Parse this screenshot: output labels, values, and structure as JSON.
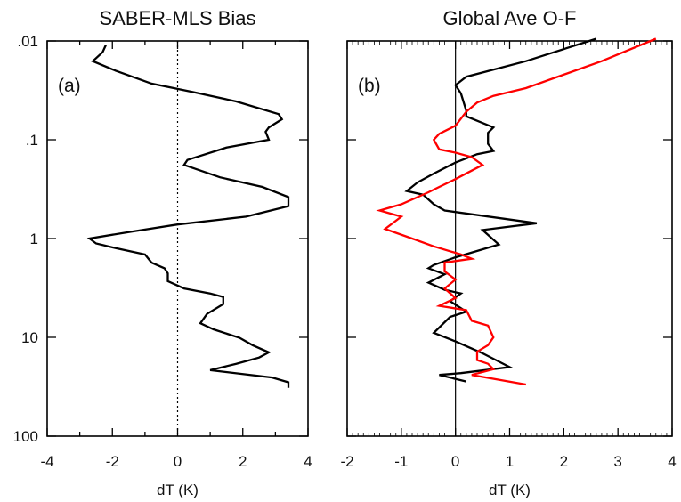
{
  "chart_data": [
    {
      "type": "line",
      "title": "SABER-MLS Bias",
      "panel_label": "(a)",
      "xlabel": "dT (K)",
      "ylabel": "",
      "xlim": [
        -4,
        4
      ],
      "ylim": [
        100,
        0.01
      ],
      "y_scale": "log-reversed",
      "x_ticks": [
        "-4",
        "-2",
        "0",
        "2",
        "4"
      ],
      "y_ticks": [
        ".01",
        ".1",
        "1",
        "10",
        "100"
      ],
      "zero_line": "dotted",
      "series": [
        {
          "color": "#000000",
          "points": [
            [
              -2.2,
              0.011
            ],
            [
              -2.3,
              0.013
            ],
            [
              -2.6,
              0.016
            ],
            [
              -1.9,
              0.02
            ],
            [
              -0.8,
              0.027
            ],
            [
              0.5,
              0.033
            ],
            [
              1.8,
              0.041
            ],
            [
              3.1,
              0.055
            ],
            [
              3.2,
              0.062
            ],
            [
              2.8,
              0.075
            ],
            [
              2.7,
              0.083
            ],
            [
              2.8,
              0.1
            ],
            [
              1.5,
              0.12
            ],
            [
              0.3,
              0.16
            ],
            [
              0.2,
              0.18
            ],
            [
              1.3,
              0.24
            ],
            [
              2.6,
              0.3
            ],
            [
              3.4,
              0.38
            ],
            [
              3.4,
              0.47
            ],
            [
              2.1,
              0.6
            ],
            [
              0.0,
              0.72
            ],
            [
              -1.5,
              0.86
            ],
            [
              -2.7,
              1.0
            ],
            [
              -2.5,
              1.12
            ],
            [
              -1.9,
              1.25
            ],
            [
              -1.0,
              1.45
            ],
            [
              -0.8,
              1.75
            ],
            [
              -0.4,
              2.0
            ],
            [
              -0.3,
              2.25
            ],
            [
              -0.3,
              2.7
            ],
            [
              0.2,
              3.2
            ],
            [
              1.0,
              3.6
            ],
            [
              1.4,
              3.9
            ],
            [
              1.4,
              4.6
            ],
            [
              0.9,
              5.8
            ],
            [
              0.7,
              7.2
            ],
            [
              1.1,
              8.3
            ],
            [
              1.9,
              10.1
            ],
            [
              2.3,
              12.0
            ],
            [
              2.8,
              14.2
            ],
            [
              2.5,
              16.0
            ],
            [
              1.8,
              18.5
            ],
            [
              1.0,
              21.5
            ],
            [
              2.9,
              25.5
            ],
            [
              3.4,
              28.5
            ],
            [
              3.4,
              32.5
            ]
          ]
        }
      ]
    },
    {
      "type": "line",
      "title": "Global Ave O-F",
      "panel_label": "(b)",
      "xlabel": "dT (K)",
      "ylabel": "",
      "xlim": [
        -2,
        4
      ],
      "ylim": [
        100,
        0.01
      ],
      "y_scale": "log-reversed",
      "x_ticks": [
        "-2",
        "-1",
        "0",
        "1",
        "2",
        "3",
        "4"
      ],
      "zero_line": "solid",
      "series": [
        {
          "color": "#000000",
          "points": [
            [
              2.6,
              0.0095
            ],
            [
              1.3,
              0.016
            ],
            [
              0.2,
              0.023
            ],
            [
              0.0,
              0.028
            ],
            [
              0.1,
              0.034
            ],
            [
              0.2,
              0.051
            ],
            [
              0.2,
              0.058
            ],
            [
              0.7,
              0.075
            ],
            [
              0.6,
              0.085
            ],
            [
              0.6,
              0.11
            ],
            [
              0.7,
              0.13
            ],
            [
              0.4,
              0.14
            ],
            [
              0.0,
              0.17
            ],
            [
              -0.4,
              0.22
            ],
            [
              -0.7,
              0.27
            ],
            [
              -0.9,
              0.33
            ],
            [
              -0.6,
              0.36
            ],
            [
              -0.4,
              0.45
            ],
            [
              -0.2,
              0.52
            ],
            [
              1.5,
              0.7
            ],
            [
              0.5,
              0.82
            ],
            [
              0.8,
              1.15
            ],
            [
              0.0,
              1.55
            ],
            [
              -0.4,
              1.85
            ],
            [
              -0.5,
              2.0
            ],
            [
              -0.2,
              2.3
            ],
            [
              -0.5,
              2.8
            ],
            [
              -0.2,
              3.3
            ],
            [
              0.1,
              3.6
            ],
            [
              -0.1,
              4.3
            ],
            [
              0.2,
              5.5
            ],
            [
              -0.1,
              6.2
            ],
            [
              -0.4,
              9.0
            ],
            [
              0.0,
              11.0
            ],
            [
              0.5,
              14.5
            ],
            [
              1.0,
              20.0
            ],
            [
              0.1,
              23.0
            ],
            [
              -0.3,
              24.0
            ],
            [
              0.2,
              28.0
            ]
          ]
        },
        {
          "color": "#ff0000",
          "points": [
            [
              3.7,
              0.0095
            ],
            [
              2.7,
              0.016
            ],
            [
              1.3,
              0.03
            ],
            [
              0.7,
              0.036
            ],
            [
              0.4,
              0.042
            ],
            [
              0.2,
              0.052
            ],
            [
              0.0,
              0.072
            ],
            [
              -0.3,
              0.087
            ],
            [
              -0.4,
              0.1
            ],
            [
              -0.3,
              0.125
            ],
            [
              0.0,
              0.135
            ],
            [
              0.3,
              0.15
            ],
            [
              0.5,
              0.18
            ],
            [
              0.0,
              0.25
            ],
            [
              -0.3,
              0.3
            ],
            [
              -0.5,
              0.34
            ],
            [
              -1.0,
              0.45
            ],
            [
              -1.4,
              0.52
            ],
            [
              -1.0,
              0.6
            ],
            [
              -1.3,
              0.8
            ],
            [
              -0.8,
              1.0
            ],
            [
              -0.4,
              1.2
            ],
            [
              0.1,
              1.45
            ],
            [
              0.3,
              1.6
            ],
            [
              -0.2,
              1.75
            ],
            [
              -0.2,
              2.15
            ],
            [
              0.0,
              2.6
            ],
            [
              -0.2,
              3.2
            ],
            [
              0.0,
              4.0
            ],
            [
              -0.3,
              4.8
            ],
            [
              0.2,
              5.3
            ],
            [
              0.3,
              6.8
            ],
            [
              0.6,
              7.6
            ],
            [
              0.7,
              10.0
            ],
            [
              0.6,
              12.0
            ],
            [
              0.4,
              14.0
            ],
            [
              0.4,
              17.0
            ],
            [
              0.6,
              18.5
            ],
            [
              0.7,
              21.0
            ],
            [
              0.3,
              24.0
            ],
            [
              1.3,
              30.0
            ]
          ]
        }
      ]
    }
  ]
}
